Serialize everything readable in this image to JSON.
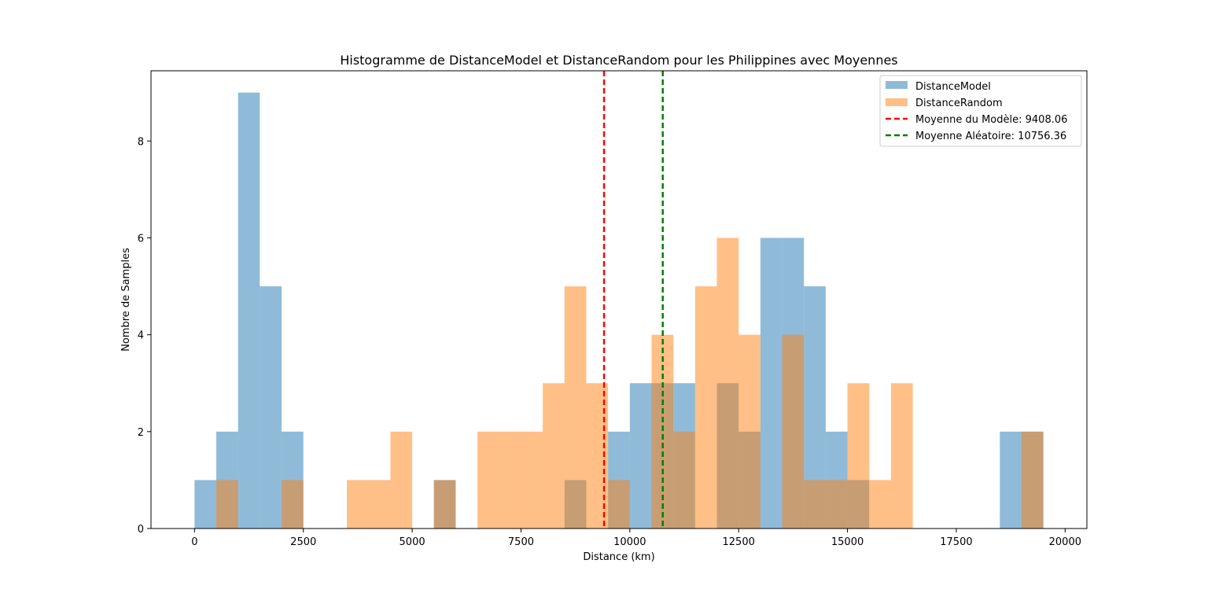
{
  "chart_data": {
    "type": "bar",
    "title": "Histogramme de DistanceModel et DistanceRandom pour les Philippines avec Moyennes",
    "xlabel": "Distance (km)",
    "ylabel": "Nombre de Samples",
    "xlim": [
      -1000,
      20500
    ],
    "ylim": [
      0,
      9.45
    ],
    "xticks": [
      0,
      2500,
      5000,
      7500,
      10000,
      12500,
      15000,
      17500,
      20000
    ],
    "yticks": [
      0,
      2,
      4,
      6,
      8
    ],
    "legend_position": "top-right",
    "bin_width": 500,
    "series": [
      {
        "name": "DistanceModel",
        "color": "#1f77b4",
        "alpha": 0.5,
        "bins": [
          {
            "start": 0,
            "count": 1
          },
          {
            "start": 500,
            "count": 2
          },
          {
            "start": 1000,
            "count": 9
          },
          {
            "start": 1500,
            "count": 5
          },
          {
            "start": 2000,
            "count": 2
          },
          {
            "start": 5500,
            "count": 1
          },
          {
            "start": 8500,
            "count": 1
          },
          {
            "start": 9500,
            "count": 2
          },
          {
            "start": 10000,
            "count": 3
          },
          {
            "start": 10500,
            "count": 3
          },
          {
            "start": 11000,
            "count": 3
          },
          {
            "start": 12000,
            "count": 3
          },
          {
            "start": 12500,
            "count": 2
          },
          {
            "start": 13000,
            "count": 6
          },
          {
            "start": 13500,
            "count": 6
          },
          {
            "start": 14000,
            "count": 5
          },
          {
            "start": 14500,
            "count": 2
          },
          {
            "start": 15000,
            "count": 1
          },
          {
            "start": 18500,
            "count": 2
          },
          {
            "start": 19000,
            "count": 2
          }
        ]
      },
      {
        "name": "DistanceRandom",
        "color": "#ff7f0e",
        "alpha": 0.5,
        "bins": [
          {
            "start": 500,
            "count": 1
          },
          {
            "start": 2000,
            "count": 1
          },
          {
            "start": 3500,
            "count": 1
          },
          {
            "start": 4000,
            "count": 1
          },
          {
            "start": 4500,
            "count": 2
          },
          {
            "start": 5500,
            "count": 1
          },
          {
            "start": 6500,
            "count": 2
          },
          {
            "start": 7000,
            "count": 2
          },
          {
            "start": 7500,
            "count": 2
          },
          {
            "start": 8000,
            "count": 3
          },
          {
            "start": 8500,
            "count": 5
          },
          {
            "start": 9000,
            "count": 3
          },
          {
            "start": 9500,
            "count": 1
          },
          {
            "start": 10500,
            "count": 4
          },
          {
            "start": 11000,
            "count": 2
          },
          {
            "start": 11500,
            "count": 5
          },
          {
            "start": 12000,
            "count": 6
          },
          {
            "start": 12500,
            "count": 4
          },
          {
            "start": 13500,
            "count": 4
          },
          {
            "start": 14000,
            "count": 1
          },
          {
            "start": 14500,
            "count": 1
          },
          {
            "start": 15000,
            "count": 3
          },
          {
            "start": 15500,
            "count": 1
          },
          {
            "start": 16000,
            "count": 3
          },
          {
            "start": 19000,
            "count": 2
          }
        ]
      }
    ],
    "mean_lines": [
      {
        "name": "Moyenne du Modèle: 9408.06",
        "value": 9408.06,
        "color": "#ff0000",
        "style": "dashed"
      },
      {
        "name": "Moyenne Aléatoire: 10756.36",
        "value": 10756.36,
        "color": "#008000",
        "style": "dashed"
      }
    ]
  }
}
